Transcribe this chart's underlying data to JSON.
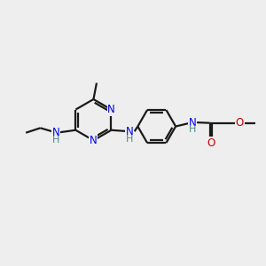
{
  "bg_color": "#eeeeee",
  "bond_color": "#1a1a1a",
  "n_color": "#0000ee",
  "nh_h_color": "#4a8a8a",
  "o_color": "#cc0000",
  "line_width": 1.6,
  "font_size": 8.5,
  "figsize": [
    3.0,
    3.0
  ],
  "dpi": 100,
  "xlim": [
    0,
    10
  ],
  "ylim": [
    0,
    10
  ]
}
